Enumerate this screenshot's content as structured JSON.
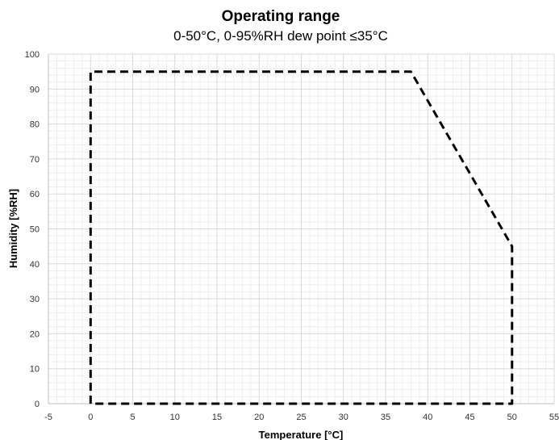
{
  "chart_data": {
    "type": "line",
    "title": "Operating range",
    "subtitle": "0-50°C, 0-95%RH dew point ≤35°C",
    "xlabel": "Temperature [°C]",
    "ylabel": "Humidity [%RH]",
    "xlim": [
      -5,
      55
    ],
    "ylim": [
      0,
      100
    ],
    "x_ticks": [
      "-5",
      "0",
      "5",
      "10",
      "15",
      "20",
      "25",
      "30",
      "35",
      "40",
      "45",
      "50",
      "55"
    ],
    "y_ticks": [
      "0",
      "10",
      "20",
      "30",
      "40",
      "50",
      "60",
      "70",
      "80",
      "90",
      "100"
    ],
    "grid": true,
    "legend": "none",
    "series": [
      {
        "color": "#000000",
        "style": "dashed",
        "x": [
          0,
          0,
          38,
          50,
          50,
          0
        ],
        "y": [
          0,
          95,
          95,
          45,
          0,
          0
        ]
      }
    ]
  }
}
